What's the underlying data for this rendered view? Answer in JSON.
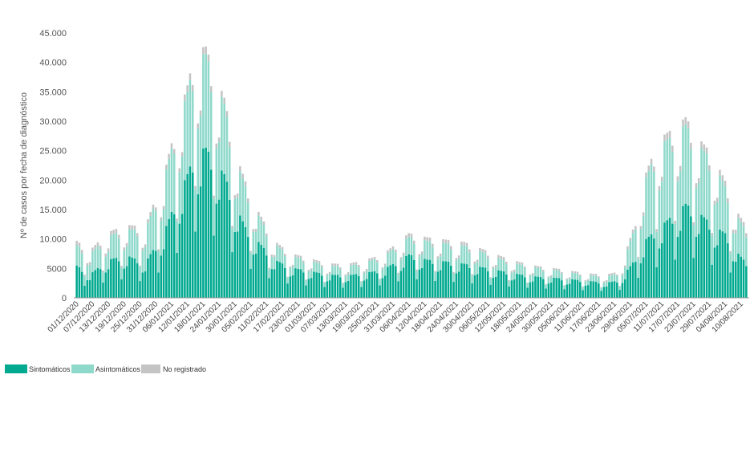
{
  "chart_data": {
    "type": "bar",
    "stacked": true,
    "ylabel": "Nº de casos por fecha de diagnóstico",
    "ylim": [
      0,
      45000
    ],
    "yticks": [
      0,
      5000,
      10000,
      15000,
      20000,
      25000,
      30000,
      35000,
      40000,
      45000
    ],
    "ytick_labels": [
      "0",
      "5000",
      "10.000",
      "15.000",
      "20.000",
      "25.000",
      "30.000",
      "35.000",
      "40.000",
      "45.000"
    ],
    "grid": false,
    "legend_position": "bottom-left",
    "xtick_labels": [
      "01/12/2020",
      "07/12/2020",
      "13/12/2020",
      "19/12/2020",
      "25/12/2020",
      "31/12/2020",
      "06/01/2021",
      "12/01/2021",
      "18/01/2021",
      "24/01/2021",
      "30/01/2021",
      "05/02/2021",
      "11/02/2021",
      "17/02/2021",
      "23/02/2021",
      "01/03/2021",
      "07/03/2021",
      "13/03/2021",
      "19/03/2021",
      "25/03/2021",
      "31/03/2021",
      "06/04/2021",
      "12/04/2021",
      "18/04/2021",
      "24/04/2021",
      "30/04/2021",
      "06/05/2021",
      "12/05/2021",
      "18/05/2021",
      "24/05/2021",
      "30/05/2021",
      "05/06/2021",
      "11/06/2021",
      "17/06/2021",
      "23/06/2021",
      "29/06/2021",
      "05/07/2021",
      "11/07/2021",
      "17/07/2021",
      "23/07/2021",
      "29/07/2021",
      "04/08/2021",
      "10/08/2021"
    ],
    "series": [
      {
        "name": "Sintomáticos",
        "color": "#00a98f"
      },
      {
        "name": "Asintomáticos",
        "color": "#8fd9cb"
      },
      {
        "name": "No registrado",
        "color": "#c4c4c4"
      }
    ],
    "keypoints": {
      "dates": [
        "2020-12-01",
        "2020-12-06",
        "2020-12-13",
        "2020-12-20",
        "2020-12-27",
        "2021-01-03",
        "2021-01-08",
        "2021-01-12",
        "2021-01-15",
        "2021-01-19",
        "2021-01-22",
        "2021-01-26",
        "2021-01-30",
        "2021-02-03",
        "2021-02-08",
        "2021-02-14",
        "2021-02-20",
        "2021-02-27",
        "2021-03-06",
        "2021-03-13",
        "2021-03-20",
        "2021-03-27",
        "2021-04-01",
        "2021-04-06",
        "2021-04-13",
        "2021-04-20",
        "2021-04-27",
        "2021-05-04",
        "2021-05-11",
        "2021-05-18",
        "2021-05-25",
        "2021-06-01",
        "2021-06-08",
        "2021-06-15",
        "2021-06-20",
        "2021-06-25",
        "2021-06-30",
        "2021-07-05",
        "2021-07-10",
        "2021-07-15",
        "2021-07-20",
        "2021-07-25",
        "2021-07-30",
        "2021-08-04",
        "2021-08-09",
        "2021-08-12"
      ],
      "sintomaticos": [
        5500,
        4000,
        6500,
        7200,
        6000,
        11000,
        17000,
        21000,
        25000,
        25500,
        23500,
        21000,
        16000,
        12000,
        9500,
        6500,
        5200,
        4600,
        4000,
        3800,
        4200,
        4800,
        6000,
        7400,
        6500,
        6200,
        5800,
        5200,
        4600,
        4000,
        3600,
        3400,
        3100,
        2800,
        2600,
        3000,
        6000,
        10000,
        12000,
        14000,
        16000,
        14500,
        12500,
        11000,
        7500,
        6000
      ],
      "asintomaticos": [
        3500,
        3500,
        4000,
        4500,
        5500,
        9000,
        12000,
        14000,
        16000,
        16000,
        14000,
        12000,
        8000,
        7000,
        4500,
        2700,
        2000,
        1800,
        1500,
        1500,
        1800,
        2200,
        2600,
        3000,
        3200,
        3100,
        3100,
        2600,
        2000,
        1700,
        1500,
        1300,
        1100,
        1000,
        1100,
        1200,
        5000,
        10500,
        14000,
        13500,
        13500,
        11500,
        11000,
        8000,
        6000,
        5500
      ],
      "no_registrado": [
        700,
        600,
        700,
        700,
        600,
        800,
        900,
        1100,
        1200,
        1200,
        1100,
        1000,
        900,
        800,
        600,
        500,
        400,
        400,
        400,
        400,
        400,
        400,
        500,
        600,
        600,
        600,
        600,
        500,
        500,
        400,
        300,
        300,
        300,
        300,
        300,
        300,
        600,
        800,
        1100,
        1200,
        1200,
        1100,
        1000,
        900,
        800,
        700
      ],
      "dips": [
        [
          5,
          0.45
        ],
        [
          6,
          0.7
        ],
        [
          0,
          0.75
        ],
        [
          1,
          1.0
        ],
        [
          2,
          1.0
        ],
        [
          3,
          1.0
        ],
        [
          4,
          0.9
        ]
      ]
    }
  }
}
